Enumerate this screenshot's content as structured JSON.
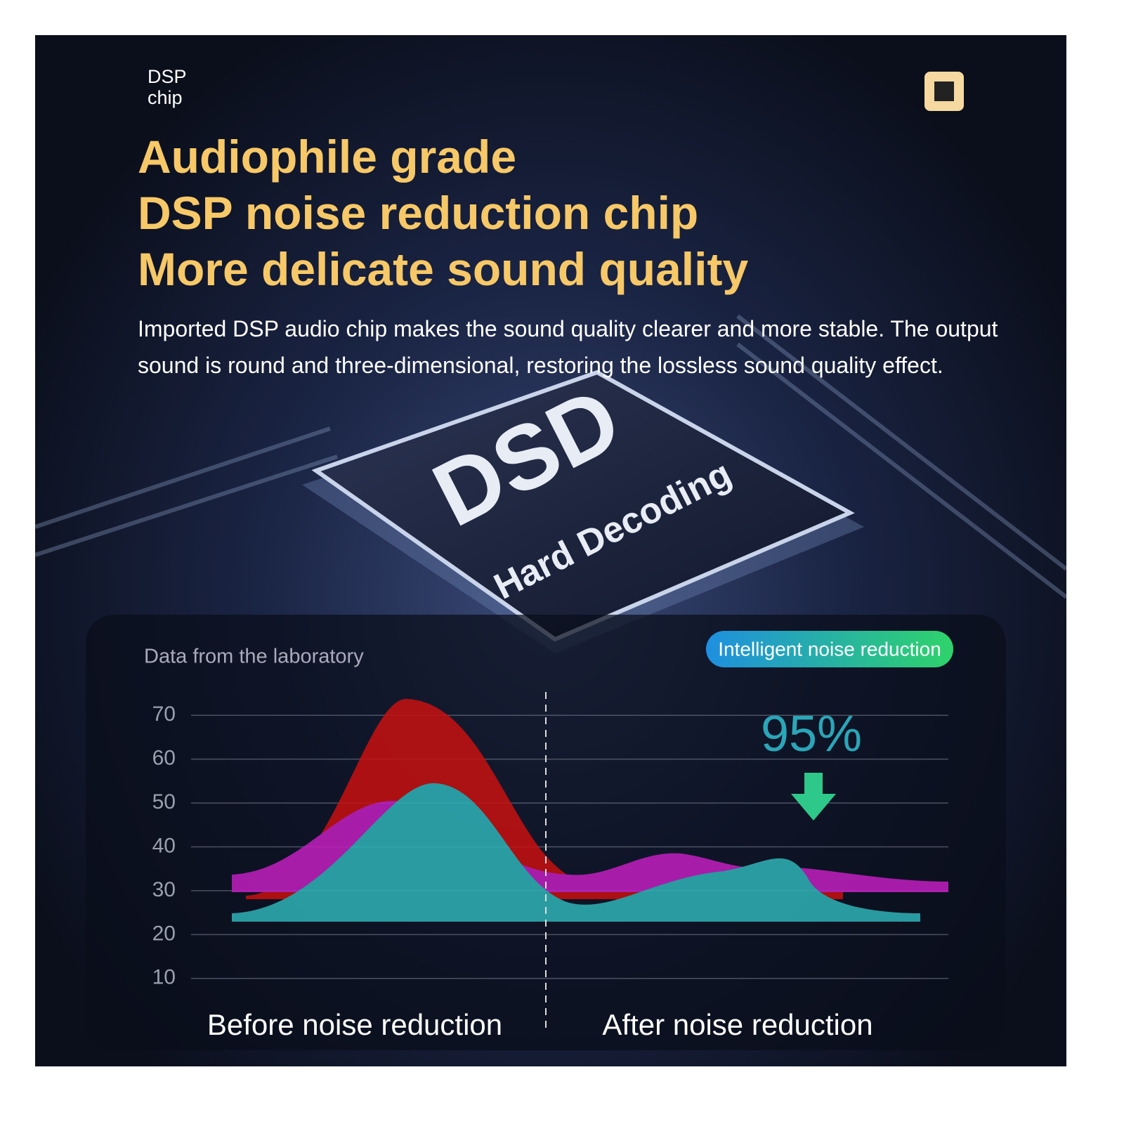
{
  "badge": "DSP chip",
  "headline": [
    "Audiophile grade",
    "DSP noise reduction chip",
    "More delicate sound quality"
  ],
  "description": "Imported DSP audio chip makes the sound quality clearer and more stable. The output sound is round and three-dimensional, restoring the lossless sound quality effect.",
  "chip": {
    "title": "DSD",
    "subtitle": "Hard Decoding"
  },
  "chart": {
    "title": "Data from the laboratory",
    "tag": "Intelligent noise reduction",
    "reduction": "95%",
    "ylim": [
      5,
      75
    ],
    "yticks": [
      10,
      20,
      30,
      40,
      50,
      60,
      70
    ],
    "categories": [
      "Before noise reduction",
      "After noise reduction"
    ]
  }
}
